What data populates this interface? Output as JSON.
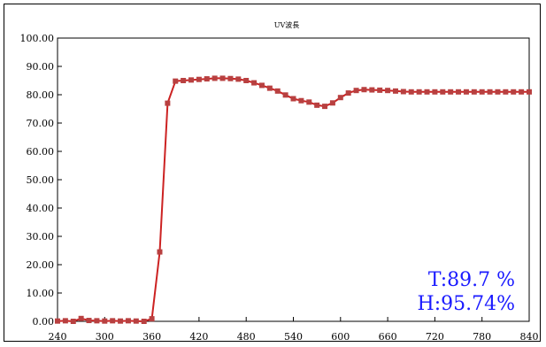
{
  "chart_data": {
    "type": "line",
    "title": "UV波長",
    "xlabel": "",
    "ylabel": "",
    "xlim": [
      240,
      840
    ],
    "ylim": [
      0,
      100
    ],
    "x_ticks": [
      "240",
      "300",
      "360",
      "420",
      "480",
      "540",
      "600",
      "660",
      "720",
      "780",
      "840"
    ],
    "y_ticks": [
      "0.00",
      "10.00",
      "20.00",
      "30.00",
      "40.00",
      "50.00",
      "60.00",
      "70.00",
      "80.00",
      "90.00",
      "100.00"
    ],
    "grid": false,
    "series": [
      {
        "color": "#cc2222",
        "marker_color": "#b84040",
        "x": [
          240,
          250,
          260,
          270,
          280,
          290,
          300,
          310,
          320,
          330,
          340,
          350,
          360,
          370,
          380,
          390,
          400,
          410,
          420,
          430,
          440,
          450,
          460,
          470,
          480,
          490,
          500,
          510,
          520,
          530,
          540,
          550,
          560,
          570,
          580,
          590,
          600,
          610,
          620,
          630,
          640,
          650,
          660,
          670,
          680,
          690,
          700,
          710,
          720,
          730,
          740,
          750,
          760,
          770,
          780,
          790,
          800,
          810,
          820,
          830,
          840
        ],
        "y": [
          0.1,
          0.2,
          0.0,
          1.0,
          0.3,
          0.2,
          0.1,
          0.2,
          0.1,
          0.2,
          0.1,
          0.0,
          0.9,
          24.5,
          77.0,
          84.8,
          85.0,
          85.2,
          85.4,
          85.6,
          85.8,
          85.8,
          85.7,
          85.5,
          85.0,
          84.2,
          83.3,
          82.3,
          81.3,
          79.9,
          78.6,
          77.9,
          77.4,
          76.3,
          75.9,
          77.1,
          79.0,
          80.6,
          81.5,
          81.8,
          81.7,
          81.6,
          81.5,
          81.3,
          81.1,
          81.0,
          81.0,
          81.0,
          81.0,
          81.0,
          81.0,
          81.0,
          81.0,
          81.0,
          81.0,
          81.0,
          81.0,
          81.0,
          81.0,
          81.0,
          81.0
        ]
      }
    ],
    "annotations": [
      "T:89.7 %",
      "H:95.74%"
    ],
    "annotation_color": "#1a1aff"
  }
}
